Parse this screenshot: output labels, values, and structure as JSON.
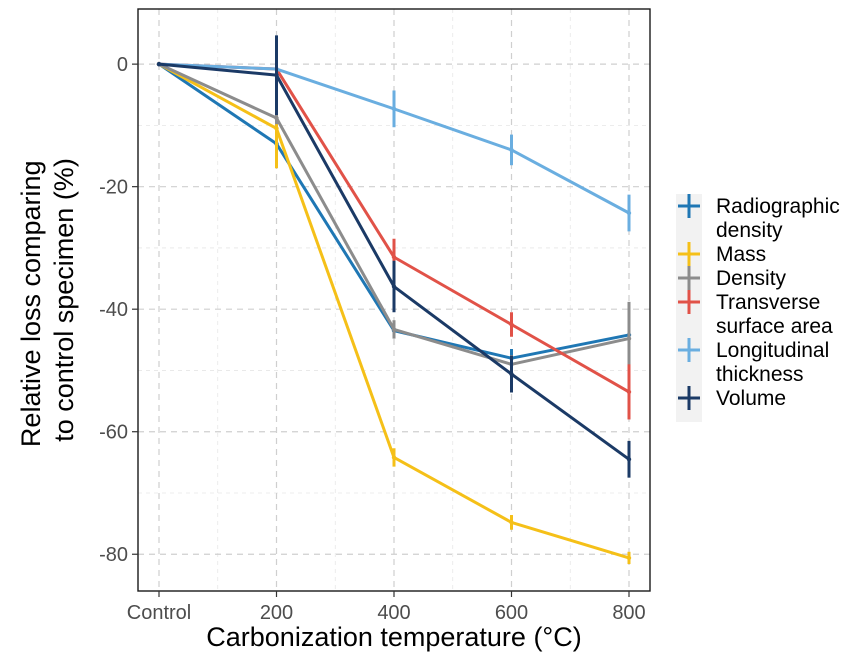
{
  "chart_data": {
    "type": "line",
    "title": "",
    "xlabel": "Carbonization temperature (°C)",
    "ylabel_lines": [
      "Relative loss comparing",
      "to control specimen (%)"
    ],
    "categories": [
      "Control",
      "200",
      "400",
      "600",
      "800"
    ],
    "ylim": [
      -86,
      9
    ],
    "yticks": [
      0,
      -20,
      -40,
      -60,
      -80
    ],
    "ytick_labels": [
      "0",
      "-20",
      "-40",
      "-60",
      "-80"
    ],
    "grid": true,
    "legend_position": "right",
    "series": [
      {
        "name_lines": [
          "Radiographic",
          "density"
        ],
        "color": "#1f77b4",
        "values": [
          0,
          -13,
          -43.5,
          -48,
          -44.2
        ],
        "err": [
          0,
          0.8,
          1.2,
          1.5,
          1.8
        ]
      },
      {
        "name_lines": [
          "Mass"
        ],
        "color": "#f5c018",
        "values": [
          0,
          -10.5,
          -64.2,
          -74.8,
          -80.6
        ],
        "err": [
          0,
          6.5,
          1.5,
          1.2,
          1.0
        ]
      },
      {
        "name_lines": [
          "Density"
        ],
        "color": "#8c8c8c",
        "values": [
          0,
          -8.8,
          -43.3,
          -49,
          -44.8
        ],
        "err": [
          0,
          1.0,
          1.5,
          1.5,
          6.0
        ]
      },
      {
        "name_lines": [
          "Transverse",
          "surface area"
        ],
        "color": "#e15248",
        "values": [
          0,
          -0.8,
          -31.5,
          -42.5,
          -53.5
        ],
        "err": [
          0,
          0.8,
          3.0,
          2.0,
          4.5
        ]
      },
      {
        "name_lines": [
          "Longitudinal",
          "thickness"
        ],
        "color": "#6aaee0",
        "values": [
          0,
          -0.8,
          -7.3,
          -14,
          -24.3
        ],
        "err": [
          0,
          0.5,
          3.0,
          2.5,
          3.0
        ]
      },
      {
        "name_lines": [
          "Volume"
        ],
        "color": "#1b3a66",
        "values": [
          0,
          -1.8,
          -36.3,
          -50.6,
          -64.5
        ],
        "err": [
          0,
          6.5,
          4.2,
          3.0,
          3.0
        ]
      }
    ]
  }
}
